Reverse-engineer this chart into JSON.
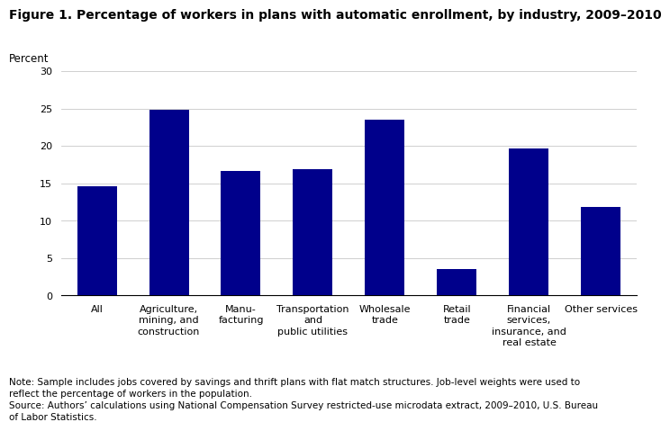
{
  "title": "Figure 1. Percentage of workers in plans with automatic enrollment, by industry, 2009–2010",
  "ylabel": "Percent",
  "ylim": [
    0,
    30
  ],
  "yticks": [
    0,
    5,
    10,
    15,
    20,
    25,
    30
  ],
  "bar_color": "#00008B",
  "categories": [
    "All",
    "Agriculture,\nmining, and\nconstruction",
    "Manu-\nfacturing",
    "Transportation\nand\npublic utilities",
    "Wholesale\ntrade",
    "Retail\ntrade",
    "Financial\nservices,\ninsurance, and\nreal estate",
    "Other services"
  ],
  "values": [
    14.6,
    24.9,
    16.7,
    16.9,
    23.5,
    3.6,
    19.7,
    11.9
  ],
  "note_text": "Note: Sample includes jobs covered by savings and thrift plans with flat match structures. Job-level weights were used to\nreflect the percentage of workers in the population.\nSource: Authors’ calculations using National Compensation Survey restricted-use microdata extract, 2009–2010, U.S. Bureau\nof Labor Statistics.",
  "title_fontsize": 10,
  "tick_fontsize": 8,
  "ylabel_fontsize": 8.5,
  "note_fontsize": 7.5
}
